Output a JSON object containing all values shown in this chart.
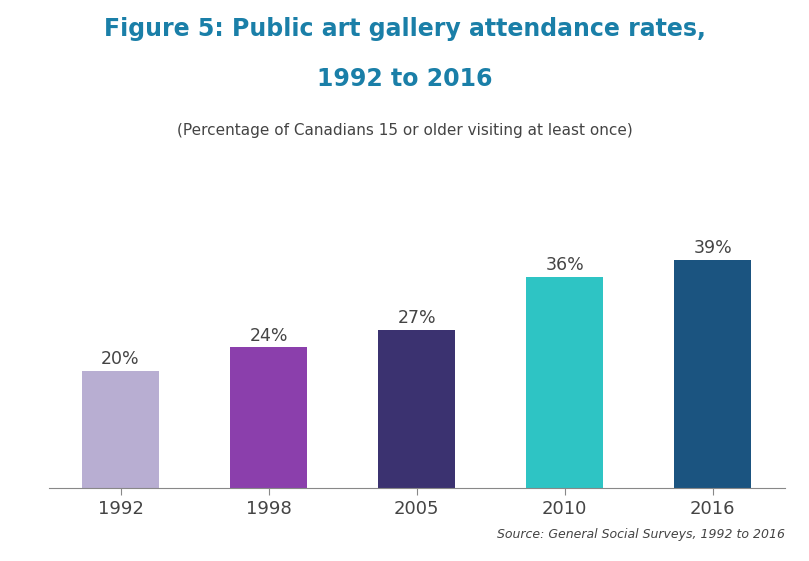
{
  "categories": [
    "1992",
    "1998",
    "2005",
    "2010",
    "2016"
  ],
  "values": [
    20,
    24,
    27,
    36,
    39
  ],
  "bar_colors": [
    "#b8aed2",
    "#8b3fac",
    "#3b3270",
    "#2ec4c4",
    "#1b5480"
  ],
  "labels": [
    "20%",
    "24%",
    "27%",
    "36%",
    "39%"
  ],
  "title_line1": "Figure 5: Public art gallery attendance rates,",
  "title_line2": "1992 to 2016",
  "subtitle": "(Percentage of Canadians 15 or older visiting at least once)",
  "source": "Source: General Social Surveys, 1992 to 2016",
  "title_color": "#1a7fa8",
  "subtitle_color": "#444444",
  "label_color": "#444444",
  "ylim": [
    0,
    45
  ],
  "background_color": "#ffffff",
  "bar_width": 0.52
}
